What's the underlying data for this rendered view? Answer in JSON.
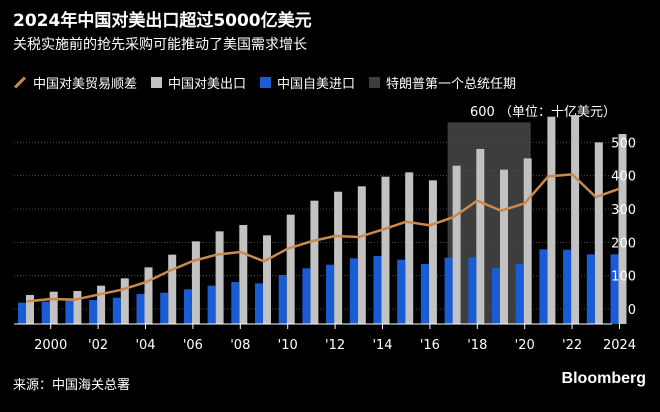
{
  "header": {
    "title": "2024年中国对美出口超过5000亿美元",
    "subtitle": "关税实施前的抢先采购可能推动了美国需求增长"
  },
  "legend": {
    "trade_gap": "中国对美贸易顺差",
    "exports": "中国对美出口",
    "imports": "中国自美进口",
    "trump_term": "特朗普第一个总统任期"
  },
  "unit_label": "600 （单位：十亿美元）",
  "footer": {
    "source": "来源：中国海关总署",
    "brand": "Bloomberg"
  },
  "colors": {
    "exports": "#c2c2c2",
    "imports": "#1a5cd6",
    "trade_gap": "#c98a4a",
    "trump_term": "#3d3d3d",
    "background": "#000000"
  },
  "chart_data": {
    "type": "bar",
    "title": "2024年中国对美出口超过5000亿美元",
    "subtitle": "关税实施前的抢先采购可能推动了美国需求增长",
    "ylabel": "十亿美元",
    "ylim": [
      -30,
      600
    ],
    "yticks": [
      0,
      100,
      200,
      300,
      400,
      500
    ],
    "years": [
      1999,
      2000,
      2001,
      2002,
      2003,
      2004,
      2005,
      2006,
      2007,
      2008,
      2009,
      2010,
      2011,
      2012,
      2013,
      2014,
      2015,
      2016,
      2017,
      2018,
      2019,
      2020,
      2021,
      2022,
      2023,
      2024
    ],
    "xtick_labels": [
      "2000",
      "'02",
      "'04",
      "'06",
      "'08",
      "'10",
      "'12",
      "'14",
      "'16",
      "'18",
      "'20",
      "'22",
      "2024"
    ],
    "xtick_years": [
      2000,
      2002,
      2004,
      2006,
      2008,
      2010,
      2012,
      2014,
      2016,
      2018,
      2020,
      2022,
      2024
    ],
    "shaded_range": [
      2017,
      2020
    ],
    "series": [
      {
        "name": "中国对美出口",
        "type": "bar",
        "values": [
          42,
          52,
          54,
          70,
          92,
          125,
          163,
          203,
          233,
          252,
          221,
          283,
          325,
          352,
          368,
          397,
          410,
          386,
          430,
          480,
          418,
          452,
          577,
          582,
          500,
          525
        ]
      },
      {
        "name": "中国自美进口",
        "type": "bar",
        "values": [
          19,
          22,
          26,
          27,
          34,
          45,
          49,
          59,
          70,
          81,
          77,
          102,
          122,
          133,
          152,
          159,
          148,
          135,
          154,
          155,
          123,
          135,
          179,
          178,
          164,
          164
        ]
      },
      {
        "name": "中国对美贸易顺差",
        "type": "line",
        "values": [
          23,
          30,
          28,
          43,
          58,
          80,
          114,
          144,
          163,
          171,
          143,
          181,
          203,
          219,
          216,
          238,
          262,
          251,
          276,
          325,
          295,
          317,
          398,
          404,
          336,
          361
        ]
      }
    ]
  }
}
